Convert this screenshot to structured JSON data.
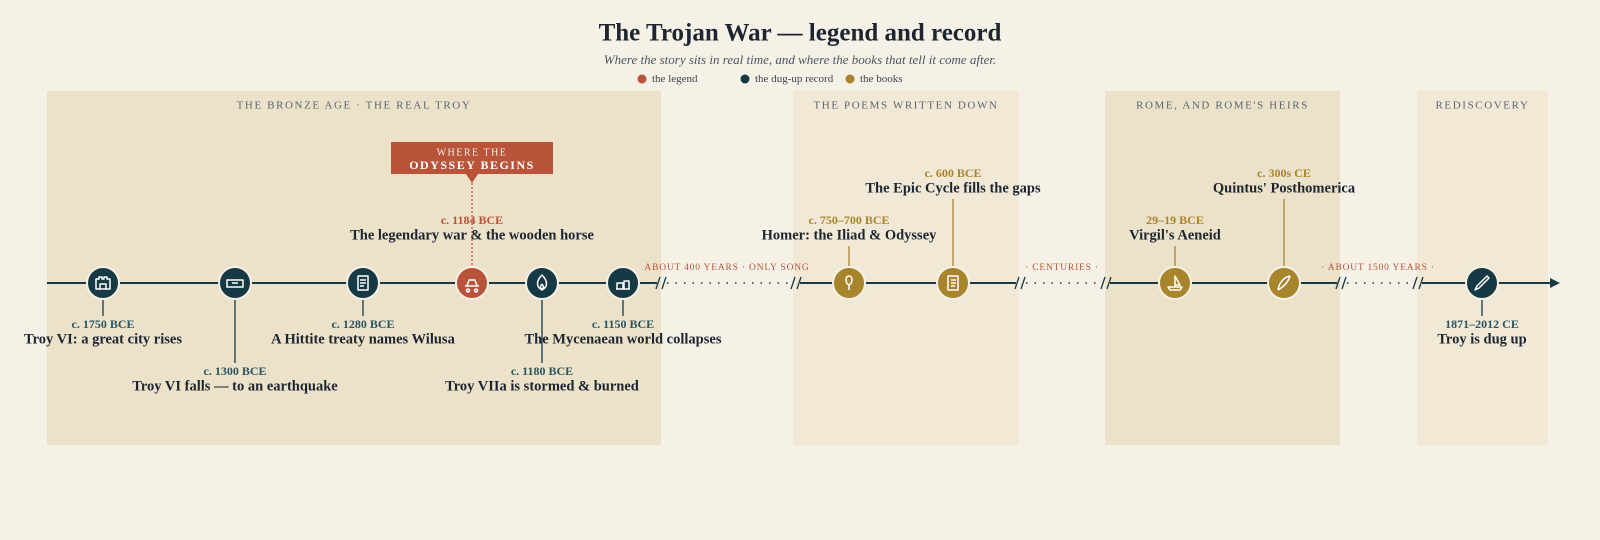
{
  "title": "The Trojan War — legend and record",
  "subtitle": "Where the story sits in real time, and where the books that tell it come after.",
  "legend": [
    {
      "label": "the legend",
      "color": "#b9533a"
    },
    {
      "label": "the dug-up record",
      "color": "#163a44"
    },
    {
      "label": "the books",
      "color": "#a8842c"
    }
  ],
  "eras": [
    {
      "label": "THE BRONZE AGE · THE REAL TROY"
    },
    {
      "label": "THE POEMS WRITTEN DOWN"
    },
    {
      "label": "ROME, AND ROME'S HEIRS"
    },
    {
      "label": "REDISCOVERY"
    }
  ],
  "gaps": [
    "ABOUT 400 YEARS · ONLY SONG",
    "· CENTURIES ·",
    "· ABOUT 1500 YEARS ·"
  ],
  "callout": {
    "line1": "WHERE THE",
    "line2": "ODYSSEY BEGINS"
  },
  "events": [
    {
      "date": "c. 1750 BCE",
      "label": "Troy VI: a great city rises",
      "color": "#163a44"
    },
    {
      "date": "c. 1300 BCE",
      "label": "Troy VI falls — to an earthquake",
      "color": "#163a44"
    },
    {
      "date": "c. 1280 BCE",
      "label": "A Hittite treaty names Wilusa",
      "color": "#163a44"
    },
    {
      "date": "c. 1184 BCE",
      "label": "The legendary war & the wooden horse",
      "color": "#b9533a"
    },
    {
      "date": "c. 1180 BCE",
      "label": "Troy VIIa is stormed & burned",
      "color": "#163a44"
    },
    {
      "date": "c. 1150 BCE",
      "label": "The Mycenaean world collapses",
      "color": "#163a44"
    },
    {
      "date": "c. 750–700 BCE",
      "label": "Homer: the Iliad & Odyssey",
      "color": "#a8842c"
    },
    {
      "date": "c. 600 BCE",
      "label": "The Epic Cycle fills the gaps",
      "color": "#a8842c"
    },
    {
      "date": "29–19 BCE",
      "label": "Virgil's Aeneid",
      "color": "#a8842c"
    },
    {
      "date": "c. 300s CE",
      "label": "Quintus' Posthomerica",
      "color": "#a8842c"
    },
    {
      "date": "1871–2012 CE",
      "label": "Troy is dug up",
      "color": "#163a44"
    }
  ]
}
